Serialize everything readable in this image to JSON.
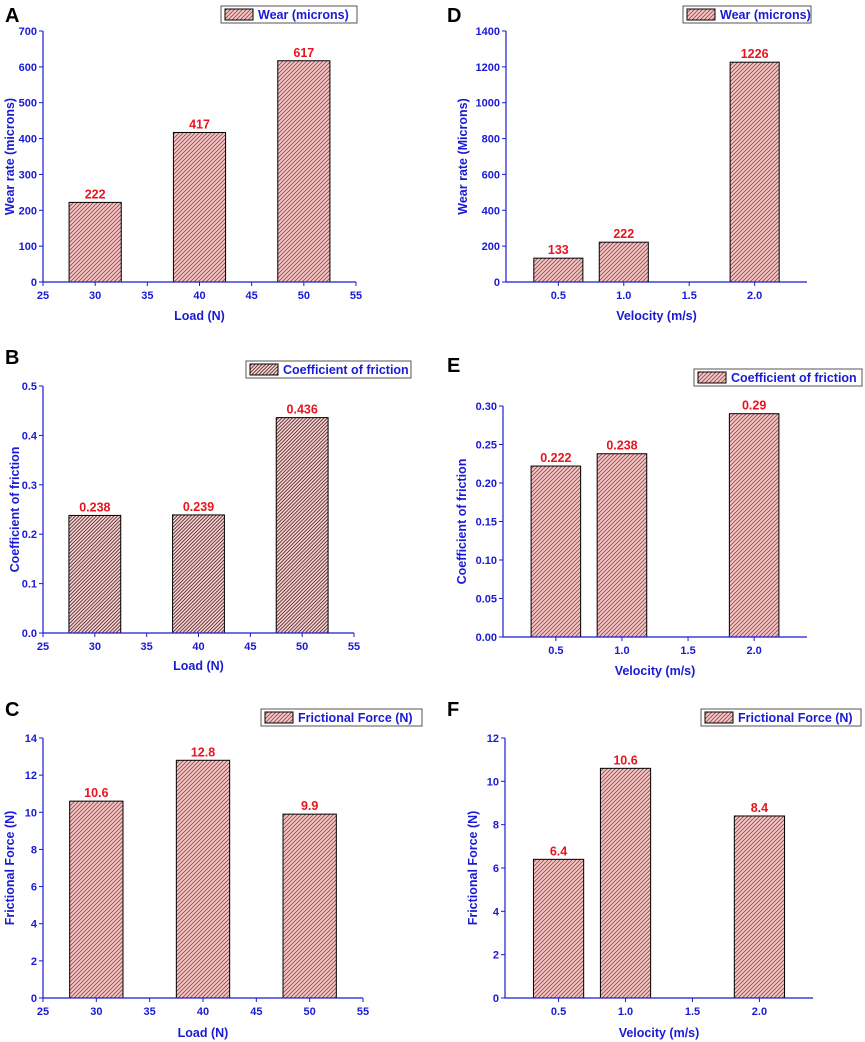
{
  "style": {
    "axis_color": "#1a1ad6",
    "value_label_color": "#e8141e",
    "bar_fill": "#f4c6c6",
    "bar_hatch": "#9a4a4a",
    "bar_edge": "#000000"
  },
  "chart_data": [
    {
      "id": "A",
      "type": "bar",
      "letter": "A",
      "legend": "Wear (microns)",
      "xlabel": "Load (N)",
      "ylabel": "Wear rate (microns)",
      "xlim": [
        25,
        55
      ],
      "ylim": [
        0,
        700
      ],
      "xticks": [
        25,
        30,
        35,
        40,
        45,
        50,
        55
      ],
      "xtick_labels": [
        "25",
        "30",
        "35",
        "40",
        "45",
        "50",
        "55"
      ],
      "yticks": [
        0,
        100,
        200,
        300,
        400,
        500,
        600,
        700
      ],
      "ytick_labels": [
        "0",
        "100",
        "200",
        "300",
        "400",
        "500",
        "600",
        "700"
      ],
      "bar_width": 5,
      "x": [
        30,
        40,
        50
      ],
      "values": [
        222,
        417,
        617
      ],
      "value_labels": [
        "222",
        "417",
        "617"
      ]
    },
    {
      "id": "D",
      "type": "bar",
      "letter": "D",
      "legend": "Wear (microns)",
      "xlabel": "Velocity (m/s)",
      "ylabel": "Wear rate (Microns)",
      "xlim": [
        0.1,
        2.4
      ],
      "ylim": [
        0,
        1400
      ],
      "xticks": [
        0.5,
        1.0,
        1.5,
        2.0
      ],
      "xtick_labels": [
        "0.5",
        "1.0",
        "1.5",
        "2.0"
      ],
      "yticks": [
        0,
        200,
        400,
        600,
        800,
        1000,
        1200,
        1400
      ],
      "ytick_labels": [
        "0",
        "200",
        "400",
        "600",
        "800",
        "1000",
        "1200",
        "1400"
      ],
      "bar_width": 0.375,
      "x": [
        0.5,
        1.0,
        2.0
      ],
      "values": [
        133,
        222,
        1226
      ],
      "value_labels": [
        "133",
        "222",
        "1226"
      ]
    },
    {
      "id": "B",
      "type": "bar",
      "letter": "B",
      "legend": "Coefficient of friction",
      "xlabel": "Load (N)",
      "ylabel": "Coefficient of friction",
      "xlim": [
        25,
        55
      ],
      "ylim": [
        0,
        0.5
      ],
      "xticks": [
        25,
        30,
        35,
        40,
        45,
        50,
        55
      ],
      "xtick_labels": [
        "25",
        "30",
        "35",
        "40",
        "45",
        "50",
        "55"
      ],
      "yticks": [
        0,
        0.1,
        0.2,
        0.3,
        0.4,
        0.5
      ],
      "ytick_labels": [
        "0.0",
        "0.1",
        "0.2",
        "0.3",
        "0.4",
        "0.5"
      ],
      "bar_width": 5,
      "x": [
        30,
        40,
        50
      ],
      "values": [
        0.238,
        0.239,
        0.436
      ],
      "value_labels": [
        "0.238",
        "0.239",
        "0.436"
      ]
    },
    {
      "id": "E",
      "type": "bar",
      "letter": "E",
      "legend": "Coefficient of friction",
      "xlabel": "Velocity (m/s)",
      "ylabel": "Coefficient of friction",
      "xlim": [
        0.1,
        2.4
      ],
      "ylim": [
        0,
        0.3
      ],
      "xticks": [
        0.5,
        1.0,
        1.5,
        2.0
      ],
      "xtick_labels": [
        "0.5",
        "1.0",
        "1.5",
        "2.0"
      ],
      "yticks": [
        0,
        0.05,
        0.1,
        0.15,
        0.2,
        0.25,
        0.3
      ],
      "ytick_labels": [
        "0.00",
        "0.05",
        "0.10",
        "0.15",
        "0.20",
        "0.25",
        "0.30"
      ],
      "bar_width": 0.375,
      "x": [
        0.5,
        1.0,
        2.0
      ],
      "values": [
        0.222,
        0.238,
        0.29
      ],
      "value_labels": [
        "0.222",
        "0.238",
        "0.29"
      ]
    },
    {
      "id": "C",
      "type": "bar",
      "letter": "C",
      "legend": "Frictional Force (N)",
      "xlabel": "Load (N)",
      "ylabel": "Frictional Force (N)",
      "xlim": [
        25,
        55
      ],
      "ylim": [
        0,
        14
      ],
      "xticks": [
        25,
        30,
        35,
        40,
        45,
        50,
        55
      ],
      "xtick_labels": [
        "25",
        "30",
        "35",
        "40",
        "45",
        "50",
        "55"
      ],
      "yticks": [
        0,
        2,
        4,
        6,
        8,
        10,
        12,
        14
      ],
      "ytick_labels": [
        "0",
        "2",
        "4",
        "6",
        "8",
        "10",
        "12",
        "14"
      ],
      "bar_width": 5,
      "x": [
        30,
        40,
        50
      ],
      "values": [
        10.6,
        12.8,
        9.9
      ],
      "value_labels": [
        "10.6",
        "12.8",
        "9.9"
      ]
    },
    {
      "id": "F",
      "type": "bar",
      "letter": "F",
      "legend": "Frictional Force (N)",
      "xlabel": "Velocity (m/s)",
      "ylabel": "Frictional Force (N)",
      "xlim": [
        0.1,
        2.4
      ],
      "ylim": [
        0,
        12
      ],
      "xticks": [
        0.5,
        1.0,
        1.5,
        2.0
      ],
      "xtick_labels": [
        "0.5",
        "1.0",
        "1.5",
        "2.0"
      ],
      "yticks": [
        0,
        2,
        4,
        6,
        8,
        10,
        12
      ],
      "ytick_labels": [
        "0",
        "2",
        "4",
        "6",
        "8",
        "10",
        "12"
      ],
      "bar_width": 0.375,
      "x": [
        0.5,
        1.0,
        2.0
      ],
      "values": [
        6.4,
        10.6,
        8.4
      ],
      "value_labels": [
        "6.4",
        "10.6",
        "8.4"
      ]
    }
  ]
}
